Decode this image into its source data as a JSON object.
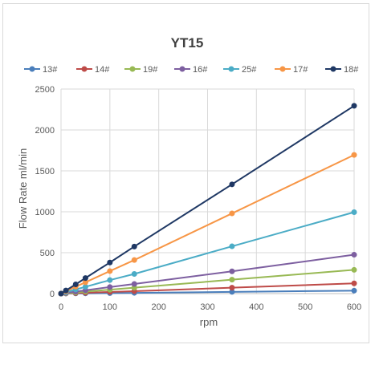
{
  "chart_data": {
    "type": "line",
    "title": "YT15",
    "xlabel": "rpm",
    "ylabel": "Flow Rate ml/min",
    "xlim": [
      0,
      600
    ],
    "ylim": [
      0,
      2500
    ],
    "xticks": [
      "0",
      "100",
      "200",
      "300",
      "400",
      "500",
      "600"
    ],
    "yticks": [
      "0",
      "500",
      "1000",
      "1500",
      "2000",
      "2500"
    ],
    "grid": true,
    "legend_position": "top",
    "x": [
      0,
      10,
      30,
      50,
      100,
      150,
      350,
      600
    ],
    "series": [
      {
        "name": "13#",
        "color": "#4a7ebb",
        "values": [
          0,
          1,
          2,
          3,
          6,
          9,
          21,
          36
        ]
      },
      {
        "name": "14#",
        "color": "#be4b48",
        "values": [
          0,
          2,
          6,
          10,
          20,
          30,
          72,
          125
        ]
      },
      {
        "name": "19#",
        "color": "#98b954",
        "values": [
          0,
          5,
          14,
          24,
          48,
          72,
          170,
          290
        ]
      },
      {
        "name": "16#",
        "color": "#7d5fa0",
        "values": [
          0,
          8,
          24,
          40,
          80,
          118,
          272,
          475
        ]
      },
      {
        "name": "25#",
        "color": "#4bacc6",
        "values": [
          0,
          17,
          50,
          83,
          165,
          240,
          578,
          995
        ]
      },
      {
        "name": "17#",
        "color": "#f79646",
        "values": [
          0,
          28,
          84,
          138,
          275,
          410,
          980,
          1695
        ]
      },
      {
        "name": "18#",
        "color": "#1f3864",
        "values": [
          0,
          38,
          113,
          190,
          380,
          575,
          1335,
          2295
        ]
      }
    ]
  }
}
